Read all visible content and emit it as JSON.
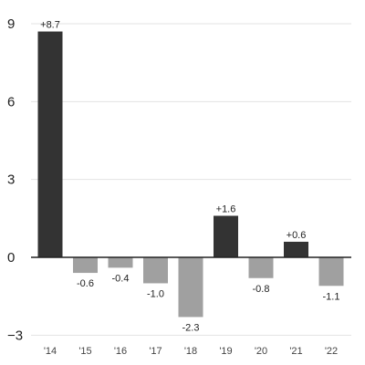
{
  "chart_data": {
    "type": "bar",
    "title": "",
    "xlabel": "",
    "ylabel": "",
    "categories": [
      "'14",
      "'15",
      "'16",
      "'17",
      "'18",
      "'19",
      "'20",
      "'21",
      "'22"
    ],
    "values": [
      8.7,
      -0.6,
      -0.4,
      -1.0,
      -2.3,
      1.6,
      -0.8,
      0.6,
      -1.1
    ],
    "data_labels": [
      "+8.7",
      "-0.6",
      "-0.4",
      "-1.0",
      "-2.3",
      "+1.6",
      "-0.8",
      "+0.6",
      "-1.1"
    ],
    "ylim": [
      -3,
      9
    ],
    "yticks": [
      9,
      6,
      3,
      0,
      -3
    ],
    "grid": "horizontal",
    "legend": "none",
    "colors": {
      "positive": "#333333",
      "negative": "#a0a0a0",
      "gridline": "#e3e3e3",
      "zeroline": "#222222"
    }
  }
}
